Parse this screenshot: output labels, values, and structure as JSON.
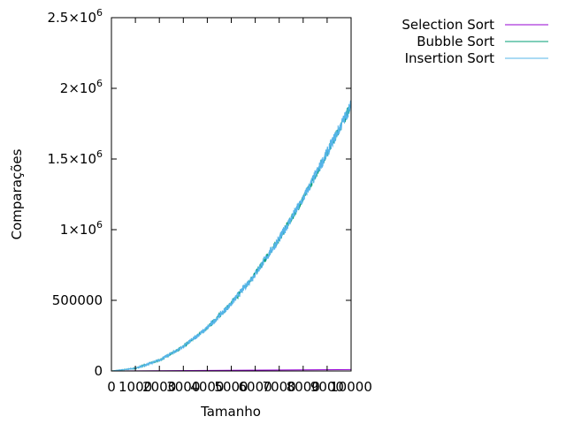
{
  "chart_data": {
    "type": "line",
    "title": "",
    "xlabel": "Tamanho",
    "ylabel": "Comparações",
    "xlim": [
      0,
      10000
    ],
    "ylim": [
      0,
      2500000
    ],
    "x_ticks": [
      {
        "value": 0,
        "label": "0"
      },
      {
        "value": 1000,
        "label": "1000"
      },
      {
        "value": 2000,
        "label": "2000"
      },
      {
        "value": 3000,
        "label": "3000"
      },
      {
        "value": 4000,
        "label": "4000"
      },
      {
        "value": 5000,
        "label": "5000"
      },
      {
        "value": 6000,
        "label": "6000"
      },
      {
        "value": 7000,
        "label": "7000"
      },
      {
        "value": 8000,
        "label": "8000"
      },
      {
        "value": 9000,
        "label": "9000"
      },
      {
        "value": 10000,
        "label": "10000"
      }
    ],
    "y_ticks": [
      {
        "value": 0,
        "label": "0"
      },
      {
        "value": 500000,
        "label": "500000"
      },
      {
        "value": 1000000,
        "label": "1×10",
        "exp": "6"
      },
      {
        "value": 1500000,
        "label": "1.5×10",
        "exp": "6"
      },
      {
        "value": 2000000,
        "label": "2×10",
        "exp": "6"
      },
      {
        "value": 2500000,
        "label": "2.5×10",
        "exp": "6"
      }
    ],
    "grid": false,
    "legend_position": "top-right-outside",
    "series": [
      {
        "name": "Selection Sort",
        "color": "#9400d3",
        "x": [
          0,
          10000
        ],
        "values": [
          0,
          10000
        ]
      },
      {
        "name": "Bubble Sort",
        "color": "#009e73",
        "x": [
          0,
          1000,
          2000,
          3000,
          4000,
          5000,
          6000,
          7000,
          8000,
          9000,
          10000
        ],
        "values": [
          0,
          19000,
          76000,
          172000,
          305000,
          477000,
          687000,
          935000,
          1220000,
          1545000,
          1880000
        ],
        "noise": 35000
      },
      {
        "name": "Insertion Sort",
        "color": "#56b4e9",
        "x": [
          0,
          1000,
          2000,
          3000,
          4000,
          5000,
          6000,
          7000,
          8000,
          9000,
          10000
        ],
        "values": [
          0,
          19000,
          76000,
          172000,
          305000,
          477000,
          687000,
          935000,
          1220000,
          1545000,
          1880000
        ],
        "noise": 45000
      }
    ]
  }
}
